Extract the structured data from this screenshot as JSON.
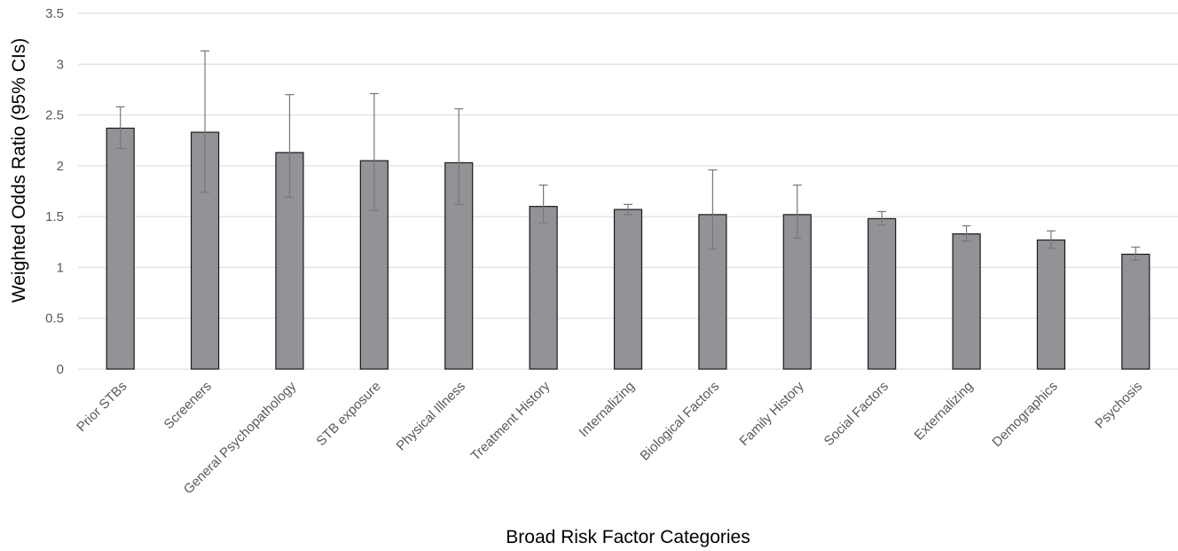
{
  "chart_data": {
    "type": "bar",
    "title": "",
    "xlabel": "Broad Risk Factor Categories",
    "ylabel": "Weighted Odds Ratio (95% CIs)",
    "ylim": [
      0,
      3.5
    ],
    "yticks": [
      "0",
      "0.5",
      "1",
      "1.5",
      "2",
      "2.5",
      "3",
      "3.5"
    ],
    "grid": true,
    "legend": "none",
    "categories": [
      "Prior STBs",
      "Screeners",
      "General Psychopathology",
      "STB exposure",
      "Physical Illness",
      "Treatment History",
      "Internalizing",
      "Biological Factors",
      "Family History",
      "Social Factors",
      "Externalizing",
      "Demographics",
      "Psychosis"
    ],
    "values": [
      2.37,
      2.33,
      2.13,
      2.05,
      2.03,
      1.6,
      1.57,
      1.52,
      1.52,
      1.48,
      1.33,
      1.27,
      1.13
    ],
    "ci_lower": [
      2.17,
      1.74,
      1.69,
      1.56,
      1.62,
      1.44,
      1.52,
      1.18,
      1.29,
      1.42,
      1.26,
      1.19,
      1.07
    ],
    "ci_upper": [
      2.58,
      3.13,
      2.7,
      2.71,
      2.56,
      1.81,
      1.62,
      1.96,
      1.81,
      1.55,
      1.41,
      1.36,
      1.2
    ],
    "colors": {
      "bar_fill": "#929396",
      "bar_stroke": "#1a1a1a",
      "error_bar": "#777777",
      "grid": "#d9d9d9",
      "tick_text": "#595959",
      "axis_title": "#000000"
    }
  }
}
